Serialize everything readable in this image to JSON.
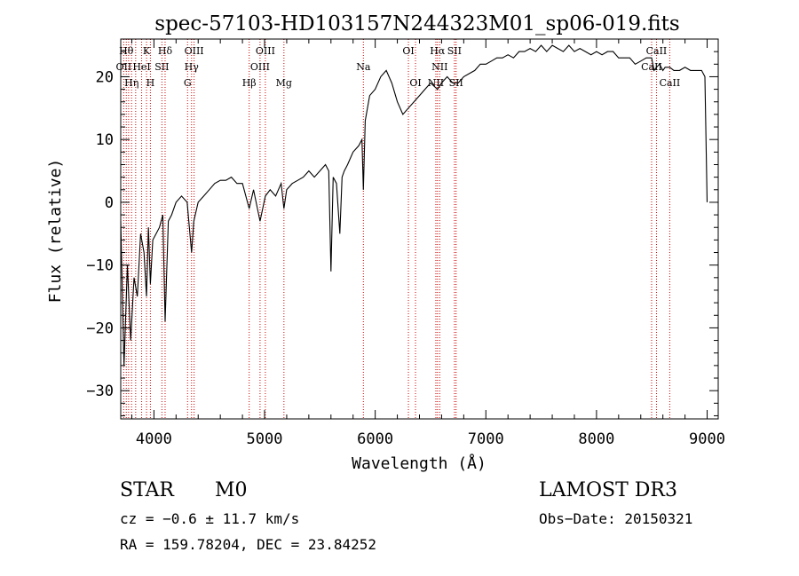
{
  "chart_data": {
    "type": "line",
    "title": "spec-57103-HD103157N244323M01_sp06-019.fits",
    "xlabel": "Wavelength (Å)",
    "ylabel": "Flux (relative)",
    "xlim": [
      3700,
      9100
    ],
    "ylim": [
      -34.5,
      26
    ],
    "xticks": [
      {
        "value": 4000,
        "label": "4000"
      },
      {
        "value": 5000,
        "label": "5000"
      },
      {
        "value": 6000,
        "label": "6000"
      },
      {
        "value": 7000,
        "label": "7000"
      },
      {
        "value": 8000,
        "label": "8000"
      },
      {
        "value": 9000,
        "label": "9000"
      }
    ],
    "yticks": [
      {
        "value": -30,
        "label": "−30"
      },
      {
        "value": -20,
        "label": "−20"
      },
      {
        "value": -10,
        "label": "−10"
      },
      {
        "value": 0,
        "label": "0"
      },
      {
        "value": 10,
        "label": "10"
      },
      {
        "value": 20,
        "label": "20"
      }
    ],
    "series": [
      {
        "name": "flux",
        "x": [
          3700,
          3730,
          3760,
          3790,
          3820,
          3850,
          3880,
          3910,
          3933,
          3950,
          3968,
          3990,
          4020,
          4050,
          4080,
          4101,
          4130,
          4160,
          4200,
          4250,
          4300,
          4340,
          4360,
          4400,
          4450,
          4500,
          4550,
          4600,
          4650,
          4700,
          4750,
          4800,
          4861,
          4900,
          4959,
          5007,
          5050,
          5100,
          5150,
          5175,
          5200,
          5250,
          5300,
          5350,
          5400,
          5450,
          5500,
          5550,
          5580,
          5600,
          5620,
          5650,
          5680,
          5700,
          5720,
          5750,
          5800,
          5850,
          5880,
          5893,
          5910,
          5950,
          6000,
          6050,
          6100,
          6150,
          6200,
          6250,
          6300,
          6350,
          6400,
          6450,
          6500,
          6563,
          6600,
          6650,
          6700,
          6750,
          6800,
          6850,
          6900,
          6950,
          7000,
          7050,
          7100,
          7150,
          7200,
          7250,
          7300,
          7350,
          7400,
          7450,
          7500,
          7550,
          7600,
          7650,
          7700,
          7750,
          7800,
          7850,
          7900,
          7950,
          8000,
          8050,
          8100,
          8150,
          8200,
          8250,
          8300,
          8350,
          8400,
          8450,
          8498,
          8520,
          8542,
          8570,
          8600,
          8620,
          8662,
          8700,
          8750,
          8800,
          8850,
          8900,
          8950,
          8980,
          9000
        ],
        "y": [
          -3,
          -26,
          -10,
          -22,
          -12,
          -15,
          -5,
          -8,
          -15,
          -4,
          -13,
          -6,
          -5,
          -4,
          -2,
          -19,
          -3,
          -2,
          0,
          1,
          0,
          -8,
          -3,
          0,
          1,
          2,
          3,
          3.5,
          3.5,
          4,
          3,
          3,
          -1,
          2,
          -3,
          1,
          2,
          1,
          3,
          -1,
          2,
          3,
          3.5,
          4,
          5,
          4,
          5,
          6,
          5,
          -11,
          4,
          3,
          -5,
          4,
          5,
          6,
          8,
          9,
          10,
          2,
          13,
          17,
          18,
          20,
          21,
          19,
          16,
          14,
          15,
          16,
          17,
          18,
          19,
          18,
          19,
          20,
          19,
          19,
          20,
          20.5,
          21,
          22,
          22,
          22.5,
          23,
          23,
          23.5,
          23,
          24,
          24,
          24.5,
          24,
          25,
          24,
          25,
          24.5,
          24,
          25,
          24,
          24.5,
          24,
          23.5,
          24,
          23.5,
          24,
          24,
          23,
          23,
          23,
          22,
          22.5,
          23,
          23,
          21,
          21.5,
          22,
          21,
          21.5,
          21.5,
          21,
          21,
          21.5,
          21,
          21,
          21,
          20,
          0
        ]
      }
    ],
    "lines": [
      {
        "wavelength": 3727,
        "label": "OII"
      },
      {
        "wavelength": 3750,
        "label": "Hθ"
      },
      {
        "wavelength": 3771,
        "label": "Hη"
      },
      {
        "wavelength": 3798,
        "label": "Hη"
      },
      {
        "wavelength": 3835,
        "label": "Hη"
      },
      {
        "wavelength": 3889,
        "label": "HeI"
      },
      {
        "wavelength": 3933,
        "label": "K"
      },
      {
        "wavelength": 3968,
        "label": "H"
      },
      {
        "wavelength": 4072,
        "label": "SII"
      },
      {
        "wavelength": 4101,
        "label": "Hδ"
      },
      {
        "wavelength": 4304,
        "label": "G"
      },
      {
        "wavelength": 4340,
        "label": "Hγ"
      },
      {
        "wavelength": 4363,
        "label": "OIII"
      },
      {
        "wavelength": 4861,
        "label": "Hβ"
      },
      {
        "wavelength": 4959,
        "label": "OIII"
      },
      {
        "wavelength": 5007,
        "label": "OIII"
      },
      {
        "wavelength": 5175,
        "label": "Mg"
      },
      {
        "wavelength": 5893,
        "label": "Na"
      },
      {
        "wavelength": 6300,
        "label": "OI"
      },
      {
        "wavelength": 6364,
        "label": "OI"
      },
      {
        "wavelength": 6548,
        "label": "NII"
      },
      {
        "wavelength": 6563,
        "label": "Hα"
      },
      {
        "wavelength": 6583,
        "label": "NII"
      },
      {
        "wavelength": 6716,
        "label": "SII"
      },
      {
        "wavelength": 6731,
        "label": "SII"
      },
      {
        "wavelength": 8498,
        "label": "CaII"
      },
      {
        "wavelength": 8542,
        "label": "CaII"
      },
      {
        "wavelength": 8662,
        "label": "CaII"
      }
    ],
    "line_labels": [
      {
        "text": "Hθ",
        "row": 0,
        "wavelength": 3750
      },
      {
        "text": "K",
        "row": 0,
        "wavelength": 3933
      },
      {
        "text": "Hδ",
        "row": 0,
        "wavelength": 4101
      },
      {
        "text": "OIII",
        "row": 0,
        "wavelength": 4363
      },
      {
        "text": "OIII",
        "row": 0,
        "wavelength": 5007
      },
      {
        "text": "OI",
        "row": 0,
        "wavelength": 6300
      },
      {
        "text": "Hα",
        "row": 0,
        "wavelength": 6563
      },
      {
        "text": "SII",
        "row": 0,
        "wavelength": 6716
      },
      {
        "text": "CaII",
        "row": 0,
        "wavelength": 8542
      },
      {
        "text": "OII",
        "row": 1,
        "wavelength": 3727
      },
      {
        "text": "HeI",
        "row": 1,
        "wavelength": 3889
      },
      {
        "text": "SII",
        "row": 1,
        "wavelength": 4072
      },
      {
        "text": "Hγ",
        "row": 1,
        "wavelength": 4340
      },
      {
        "text": "OIII",
        "row": 1,
        "wavelength": 4959
      },
      {
        "text": "Na",
        "row": 1,
        "wavelength": 5893
      },
      {
        "text": "NII",
        "row": 1,
        "wavelength": 6583
      },
      {
        "text": "CaII",
        "row": 1,
        "wavelength": 8498
      },
      {
        "text": "Hη",
        "row": 2,
        "wavelength": 3798
      },
      {
        "text": "H",
        "row": 2,
        "wavelength": 3968
      },
      {
        "text": "G",
        "row": 2,
        "wavelength": 4304
      },
      {
        "text": "Hβ",
        "row": 2,
        "wavelength": 4861
      },
      {
        "text": "Mg",
        "row": 2,
        "wavelength": 5175
      },
      {
        "text": "OI",
        "row": 2,
        "wavelength": 6364
      },
      {
        "text": "NII",
        "row": 2,
        "wavelength": 6548
      },
      {
        "text": "SII",
        "row": 2,
        "wavelength": 6731
      },
      {
        "text": "CaII",
        "row": 2,
        "wavelength": 8662
      }
    ]
  },
  "info": {
    "object_class": "STAR",
    "subclass": "M0",
    "survey": "LAMOST DR3",
    "redshift": "cz = −0.6 ± 11.7 km/s",
    "obs_date": "Obs−Date: 20150321",
    "coords": "RA = 159.78204, DEC =  23.84252"
  },
  "colors": {
    "line_marker": "#cc0000",
    "spectrum": "#000000",
    "axes": "#000000"
  }
}
